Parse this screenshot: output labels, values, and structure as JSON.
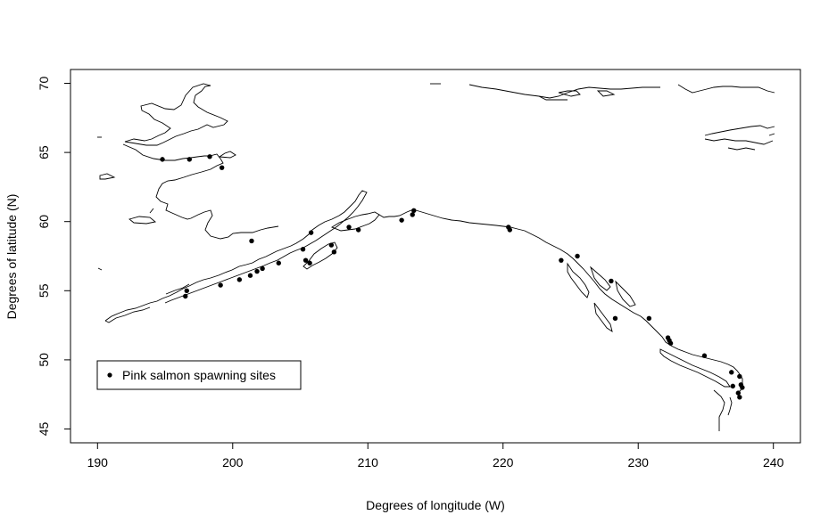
{
  "chart_data": {
    "type": "scatter",
    "title": "",
    "xlabel": "Degrees of longitude (W)",
    "ylabel": "Degrees of latitude (N)",
    "xlim": [
      188,
      242
    ],
    "ylim": [
      44,
      71
    ],
    "xticks": [
      190,
      200,
      210,
      220,
      230,
      240
    ],
    "yticks": [
      45,
      50,
      55,
      60,
      65,
      70
    ],
    "grid": false,
    "legend": {
      "position": "bottom-left",
      "entries": [
        "Pink salmon spawning sites"
      ]
    },
    "background": "coastline outline (Alaska, Bering Sea, Pacific Northwest)",
    "marker_color": "#000000",
    "series": [
      {
        "name": "Pink salmon spawning sites",
        "x": [
          194.8,
          196.8,
          198.3,
          199.2,
          201.4,
          196.5,
          196.6,
          199.1,
          200.5,
          201.3,
          201.8,
          202.2,
          203.4,
          205.2,
          205.4,
          205.7,
          205.8,
          207.3,
          207.5,
          208.6,
          209.3,
          212.5,
          213.3,
          213.4,
          220.4,
          220.5,
          224.3,
          225.5,
          228.0,
          228.3,
          230.8,
          232.2,
          232.3,
          232.4,
          234.9,
          236.9,
          237.0,
          237.4,
          237.5,
          237.6,
          237.7,
          237.5
        ],
        "y": [
          64.5,
          64.5,
          64.7,
          63.9,
          58.6,
          54.6,
          55.0,
          55.4,
          55.8,
          56.1,
          56.4,
          56.6,
          57.0,
          58.0,
          57.2,
          57.0,
          59.2,
          58.3,
          57.8,
          59.6,
          59.4,
          60.1,
          60.5,
          60.8,
          59.6,
          59.4,
          57.2,
          57.5,
          55.7,
          53.0,
          53.0,
          51.6,
          51.4,
          51.2,
          50.3,
          49.1,
          48.1,
          47.6,
          48.8,
          48.2,
          48.0,
          47.3
        ]
      }
    ]
  }
}
